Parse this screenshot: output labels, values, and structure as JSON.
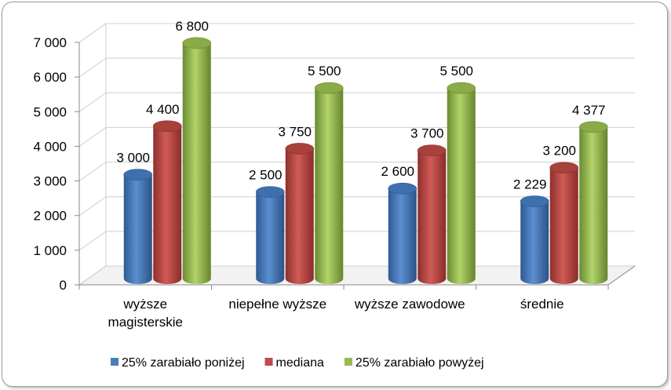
{
  "chart_data": {
    "type": "bar",
    "categories": [
      [
        "wyższe",
        "magisterskie"
      ],
      [
        "niepełne wyższe"
      ],
      [
        "wyższe zawodowe"
      ],
      [
        "średnie"
      ]
    ],
    "series": [
      {
        "name": "25% zarabiało poniżej",
        "values": [
          3000,
          2500,
          2600,
          2229
        ],
        "labels": [
          "3 000",
          "2 500",
          "2 600",
          "2 229"
        ],
        "color": "#4a7ebb"
      },
      {
        "name": "mediana",
        "values": [
          4400,
          3750,
          3700,
          3200
        ],
        "labels": [
          "4 400",
          "3 750",
          "3 700",
          "3 200"
        ],
        "color": "#be4b48"
      },
      {
        "name": "25% zarabiało powyżej",
        "values": [
          6800,
          5500,
          5500,
          4377
        ],
        "labels": [
          "6 800",
          "5 500",
          "5 500",
          "4 377"
        ],
        "color": "#98b954"
      }
    ],
    "yticks": [
      0,
      1000,
      2000,
      3000,
      4000,
      5000,
      6000,
      7000
    ],
    "ytick_labels": [
      "0",
      "1 000",
      "2 000",
      "3 000",
      "4 000",
      "5 000",
      "6 000",
      "7 000"
    ],
    "ylim": [
      0,
      7000
    ],
    "grid": true,
    "legend_position": "bottom",
    "title": "",
    "xlabel": "",
    "ylabel": ""
  }
}
